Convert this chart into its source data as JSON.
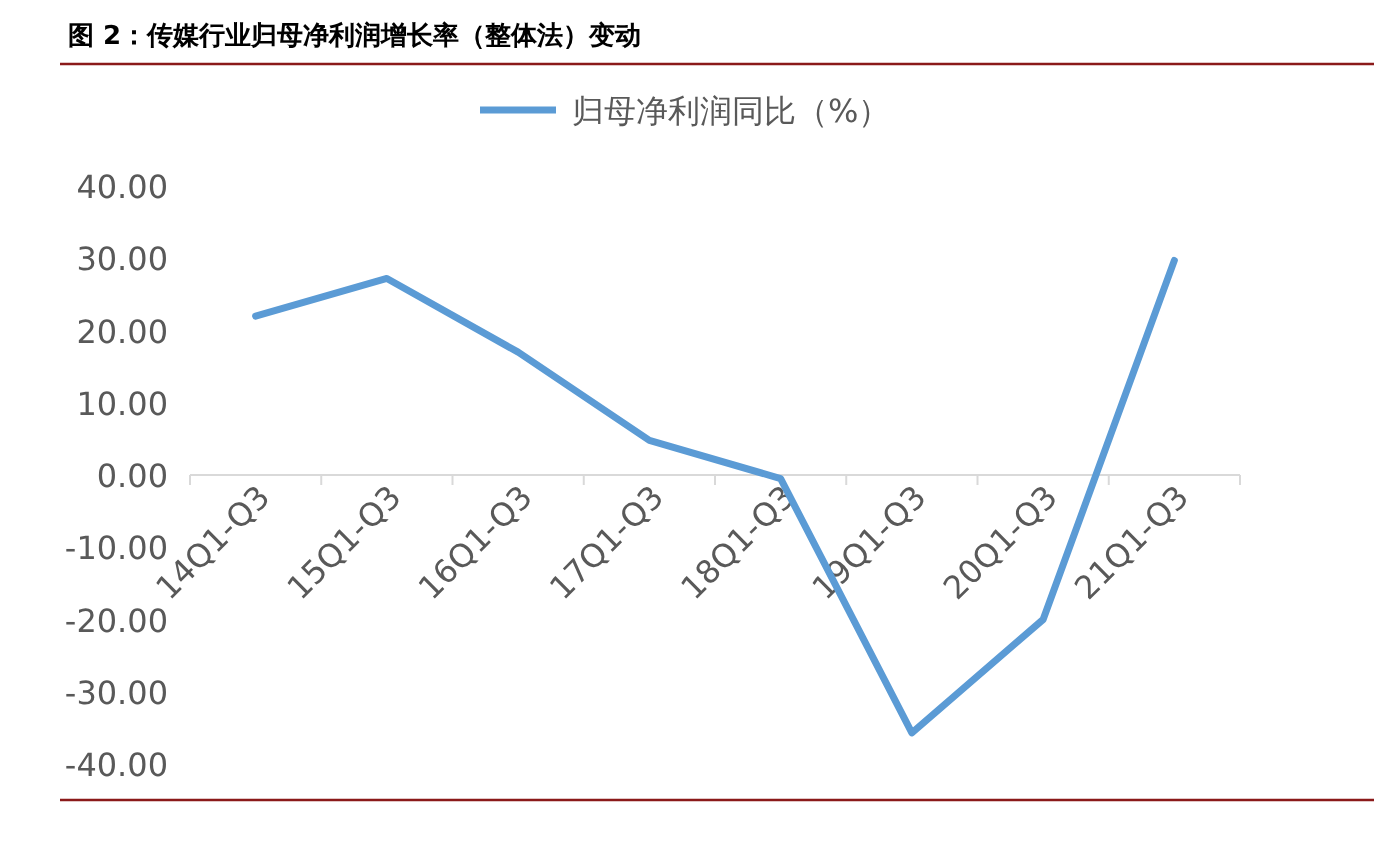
{
  "chart_data": {
    "type": "line",
    "title": "图 2：传媒行业归母净利润增长率（整体法）变动",
    "categories": [
      "14Q1-Q3",
      "15Q1-Q3",
      "16Q1-Q3",
      "17Q1-Q3",
      "18Q1-Q3",
      "19Q1-Q3",
      "20Q1-Q3",
      "21Q1-Q3"
    ],
    "series": [
      {
        "name": "归母净利润同比（%）",
        "color": "#5b9bd5",
        "values": [
          22,
          27.2,
          17,
          4.8,
          -0.5,
          -35.7,
          -20,
          29.7
        ]
      }
    ],
    "ylim": [
      -40,
      40
    ],
    "yticks": [
      {
        "value": -40,
        "label": "-40.00"
      },
      {
        "value": -30,
        "label": "-30.00"
      },
      {
        "value": -20,
        "label": "-20.00"
      },
      {
        "value": -10,
        "label": "-10.00"
      },
      {
        "value": 0,
        "label": "0.00"
      },
      {
        "value": 10,
        "label": "10.00"
      },
      {
        "value": 20,
        "label": "20.00"
      },
      {
        "value": 30,
        "label": "30.00"
      },
      {
        "value": 40,
        "label": "40.00"
      }
    ],
    "grid": false,
    "legend": "top",
    "marker": "none",
    "line_style": "solid"
  }
}
